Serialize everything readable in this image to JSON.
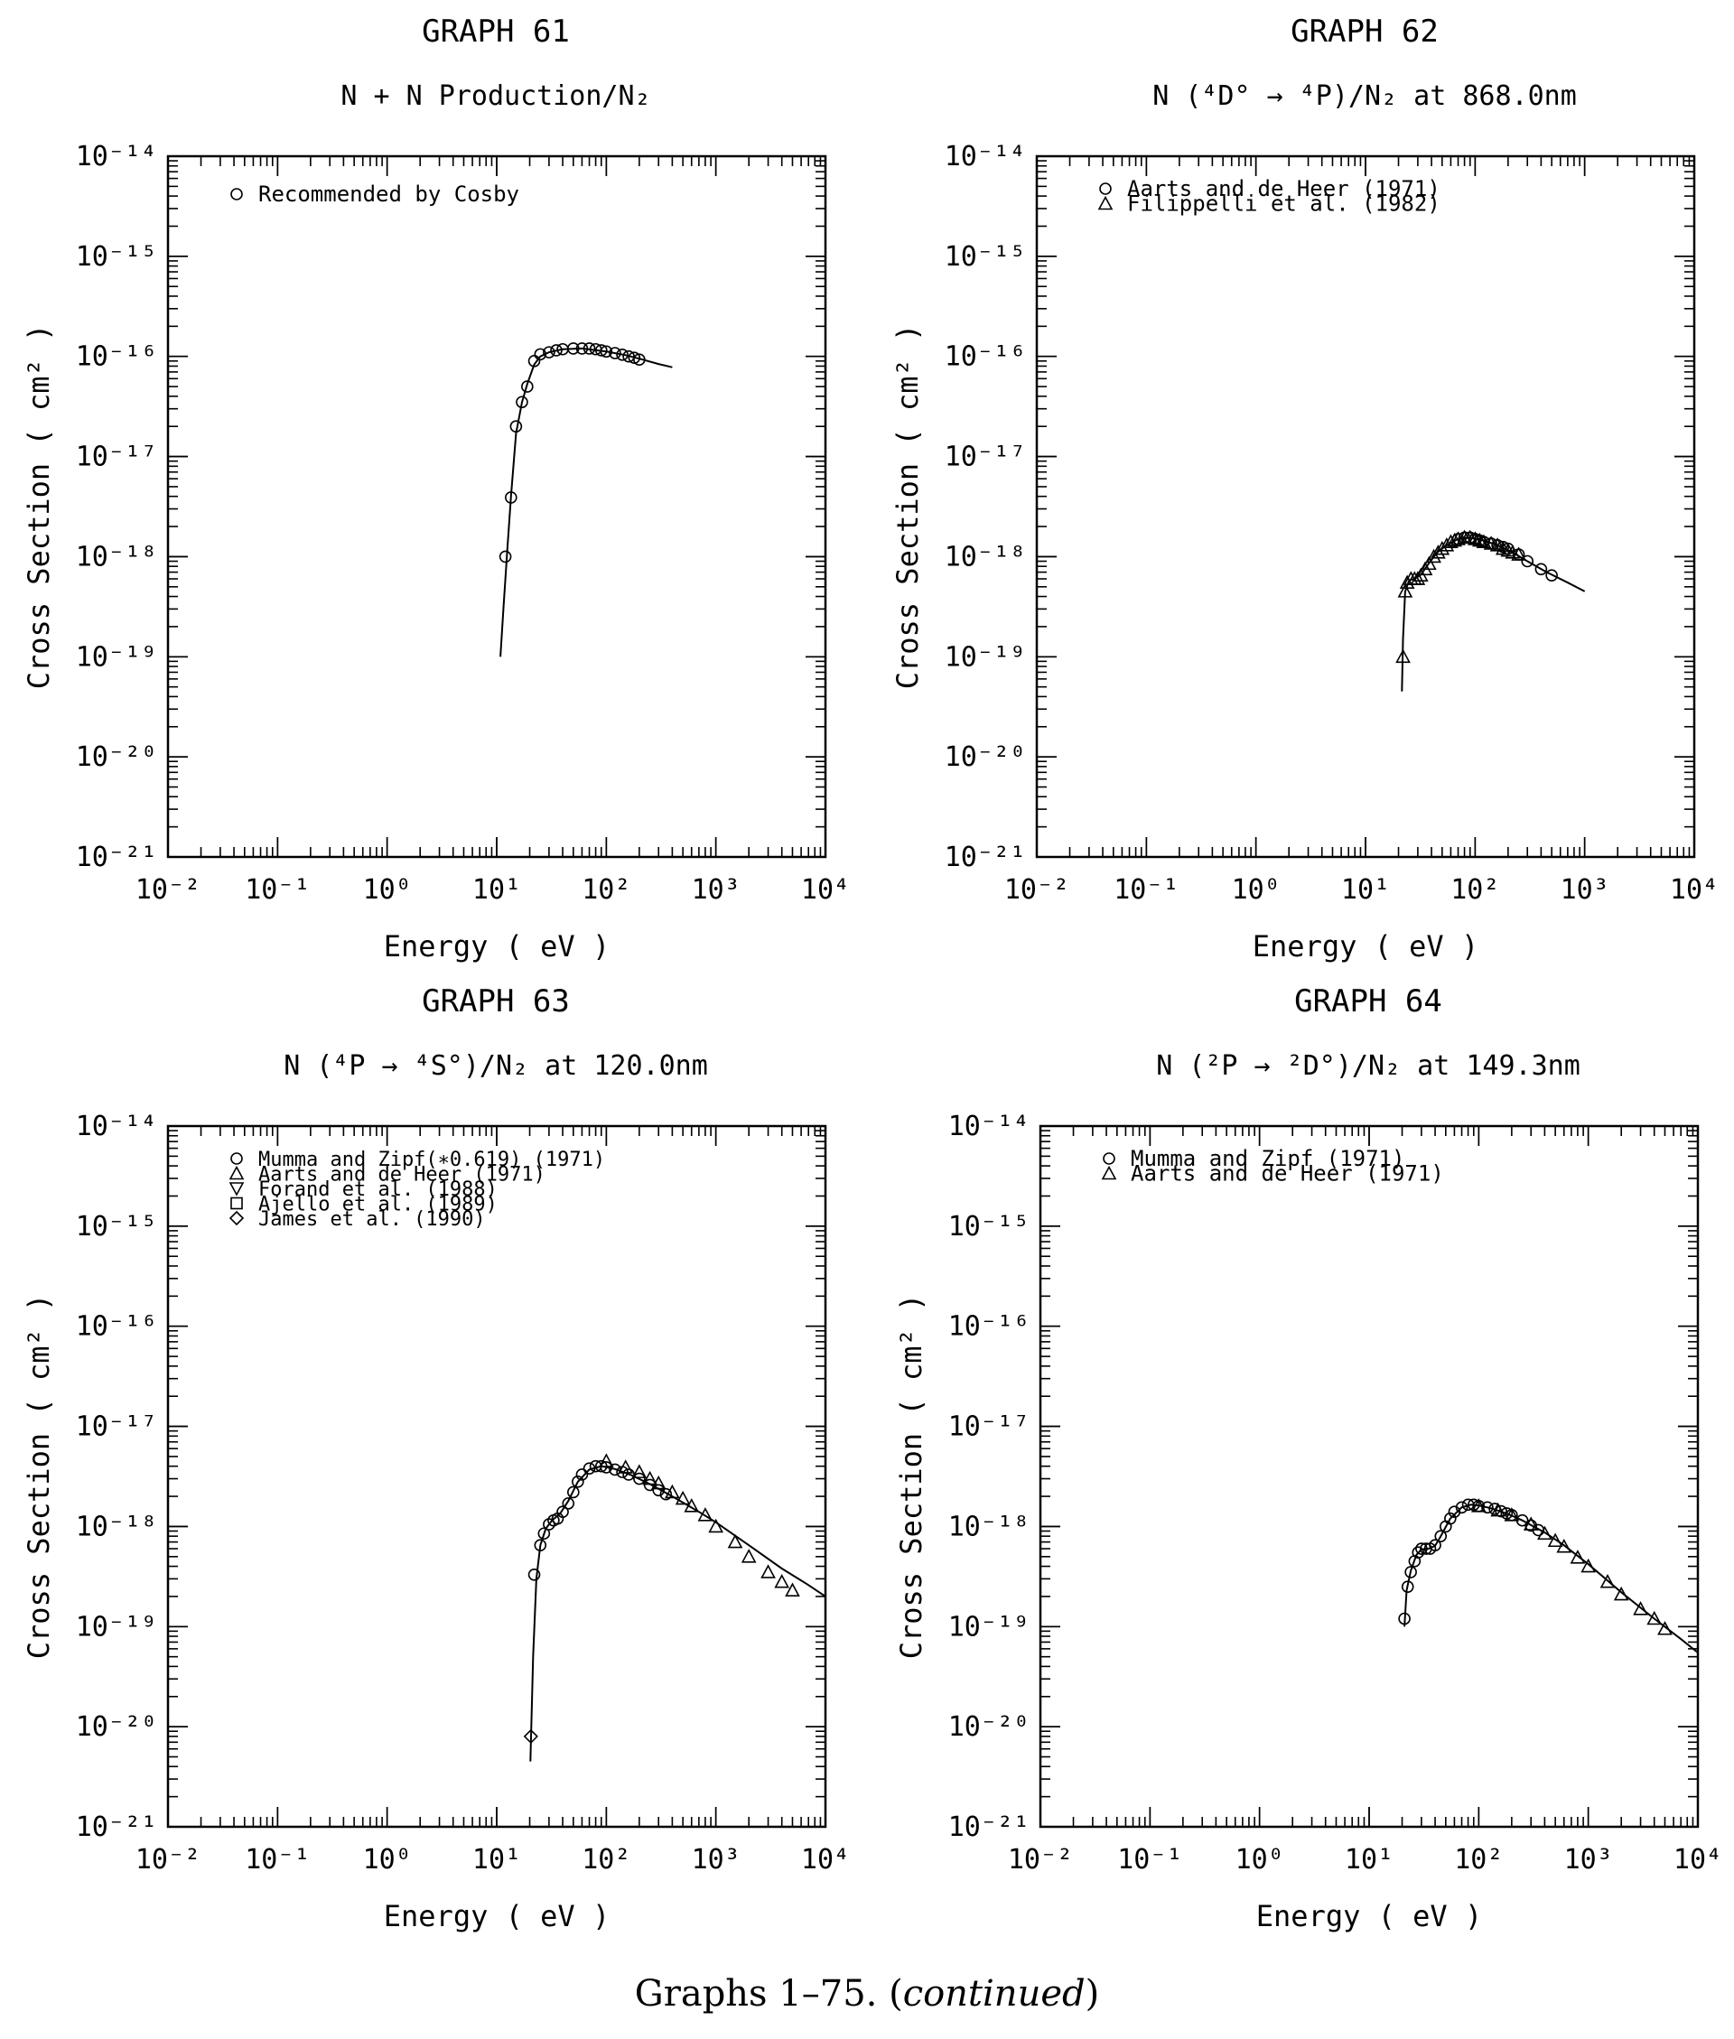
{
  "caption": {
    "text": "Graphs 1–75.",
    "emphasis": "continued"
  },
  "chart_data": [
    {
      "type": "scatter",
      "graph_label": "GRAPH 61",
      "title": "N + N Production/N₂",
      "xlabel": "Energy ( eV )",
      "ylabel": "Cross Section ( cm² )",
      "x_scale": "log",
      "y_scale": "log",
      "xlim": [
        0.01,
        10000
      ],
      "ylim": [
        1e-21,
        1e-14
      ],
      "x_ticks": [
        "10⁻²",
        "10⁻¹",
        "10⁰",
        "10¹",
        "10²",
        "10³",
        "10⁴"
      ],
      "y_ticks": [
        "10⁻²¹",
        "10⁻²⁰",
        "10⁻¹⁹",
        "10⁻¹⁸",
        "10⁻¹⁷",
        "10⁻¹⁶",
        "10⁻¹⁵",
        "10⁻¹⁴"
      ],
      "legend_position": "top-left",
      "series": [
        {
          "name": "Recommended by Cosby",
          "marker": "circle",
          "x": [
            12,
            13.5,
            15,
            17,
            19,
            22,
            25,
            30,
            35,
            40,
            50,
            60,
            70,
            80,
            90,
            100,
            120,
            140,
            160,
            180,
            200
          ],
          "y": [
            1e-18,
            3.9e-18,
            2e-17,
            3.5e-17,
            5e-17,
            9e-17,
            1.05e-16,
            1.1e-16,
            1.15e-16,
            1.18e-16,
            1.2e-16,
            1.2e-16,
            1.2e-16,
            1.18e-16,
            1.15e-16,
            1.12e-16,
            1.08e-16,
            1.04e-16,
            1e-16,
            9.7e-17,
            9.3e-17
          ]
        }
      ],
      "fit_curve": {
        "x": [
          10.8,
          11.5,
          12.5,
          13.5,
          15,
          17,
          19,
          22,
          25,
          30,
          40,
          60,
          100,
          150,
          200,
          300,
          400
        ],
        "y": [
          1e-19,
          3e-19,
          1.2e-18,
          4e-18,
          1.7e-17,
          3.5e-17,
          5.3e-17,
          8.3e-17,
          1e-16,
          1.1e-16,
          1.18e-16,
          1.2e-16,
          1.12e-16,
          1.03e-16,
          9.5e-17,
          8.4e-17,
          7.8e-17
        ]
      }
    },
    {
      "type": "scatter",
      "graph_label": "GRAPH 62",
      "title": "N (⁴D° → ⁴P)/N₂ at 868.0nm",
      "xlabel": "Energy ( eV )",
      "ylabel": "Cross Section ( cm² )",
      "x_scale": "log",
      "y_scale": "log",
      "xlim": [
        0.01,
        10000
      ],
      "ylim": [
        1e-21,
        1e-14
      ],
      "x_ticks": [
        "10⁻²",
        "10⁻¹",
        "10⁰",
        "10¹",
        "10²",
        "10³",
        "10⁴"
      ],
      "y_ticks": [
        "10⁻²¹",
        "10⁻²⁰",
        "10⁻¹⁹",
        "10⁻¹⁸",
        "10⁻¹⁷",
        "10⁻¹⁶",
        "10⁻¹⁵",
        "10⁻¹⁴"
      ],
      "legend_position": "top-left",
      "series": [
        {
          "name": "Aarts and de Heer (1971)",
          "marker": "circle",
          "x": [
            70,
            80,
            90,
            100,
            110,
            120,
            140,
            160,
            180,
            200,
            250,
            300,
            400,
            500
          ],
          "y": [
            1.5e-18,
            1.55e-18,
            1.55e-18,
            1.5e-18,
            1.45e-18,
            1.4e-18,
            1.35e-18,
            1.3e-18,
            1.25e-18,
            1.2e-18,
            1.05e-18,
            9e-19,
            7.5e-19,
            6.5e-19
          ]
        },
        {
          "name": "Filippelli et al. (1982)",
          "marker": "triangle-up",
          "x": [
            22,
            23,
            24,
            26,
            28,
            30,
            32,
            35,
            38,
            42,
            46,
            50,
            55,
            60,
            65,
            70,
            80,
            90,
            100,
            110,
            120,
            140,
            160,
            180,
            200,
            220,
            250
          ],
          "y": [
            1e-19,
            4.5e-19,
            5.5e-19,
            6e-19,
            6e-19,
            6e-19,
            6.5e-19,
            7.5e-19,
            8.5e-19,
            1e-18,
            1.1e-18,
            1.2e-18,
            1.3e-18,
            1.4e-18,
            1.45e-18,
            1.5e-18,
            1.55e-18,
            1.55e-18,
            1.5e-18,
            1.45e-18,
            1.4e-18,
            1.35e-18,
            1.3e-18,
            1.2e-18,
            1.15e-18,
            1.1e-18,
            1.05e-18
          ]
        }
      ],
      "fit_curve": {
        "x": [
          21.5,
          22,
          23,
          25,
          28,
          32,
          38,
          45,
          55,
          70,
          90,
          120,
          160,
          220,
          300,
          450,
          700,
          1000
        ],
        "y": [
          4.5e-20,
          1.5e-19,
          4.5e-19,
          5.8e-19,
          6e-19,
          6.6e-19,
          8.6e-19,
          1.1e-18,
          1.3e-18,
          1.5e-18,
          1.55e-18,
          1.45e-18,
          1.3e-18,
          1.1e-18,
          9e-19,
          7e-19,
          5.5e-19,
          4.5e-19
        ]
      }
    },
    {
      "type": "scatter",
      "graph_label": "GRAPH 63",
      "title": "N (⁴P → ⁴S°)/N₂ at 120.0nm",
      "xlabel": "Energy ( eV )",
      "ylabel": "Cross Section ( cm² )",
      "x_scale": "log",
      "y_scale": "log",
      "xlim": [
        0.01,
        10000
      ],
      "ylim": [
        1e-21,
        1e-14
      ],
      "x_ticks": [
        "10⁻²",
        "10⁻¹",
        "10⁰",
        "10¹",
        "10²",
        "10³",
        "10⁴"
      ],
      "y_ticks": [
        "10⁻²¹",
        "10⁻²⁰",
        "10⁻¹⁹",
        "10⁻¹⁸",
        "10⁻¹⁷",
        "10⁻¹⁶",
        "10⁻¹⁵",
        "10⁻¹⁴"
      ],
      "legend_position": "top-left",
      "series": [
        {
          "name": "Mumma and Zipf(∗0.619) (1971)",
          "marker": "circle",
          "x": [
            22,
            25,
            27,
            30,
            33,
            36,
            40,
            45,
            50,
            55,
            60,
            70,
            80,
            90,
            100,
            120,
            140,
            160,
            200,
            250,
            300,
            350
          ],
          "y": [
            3.3e-19,
            6.5e-19,
            8.5e-19,
            1.05e-18,
            1.15e-18,
            1.2e-18,
            1.4e-18,
            1.7e-18,
            2.2e-18,
            2.8e-18,
            3.3e-18,
            3.8e-18,
            4e-18,
            4e-18,
            3.9e-18,
            3.7e-18,
            3.5e-18,
            3.3e-18,
            3e-18,
            2.6e-18,
            2.3e-18,
            2.1e-18
          ]
        },
        {
          "name": "Aarts and de Heer (1971)",
          "marker": "triangle-up",
          "x": [
            100,
            150,
            200,
            250,
            300,
            400,
            500,
            600,
            800,
            1000,
            1500,
            2000,
            3000,
            4000,
            5000
          ],
          "y": [
            4.5e-18,
            3.9e-18,
            3.5e-18,
            3e-18,
            2.7e-18,
            2.2e-18,
            1.9e-18,
            1.6e-18,
            1.3e-18,
            1e-18,
            7e-19,
            5e-19,
            3.5e-19,
            2.8e-19,
            2.3e-19
          ]
        },
        {
          "name": "Forand et al. (1988)",
          "marker": "triangle-down",
          "x": [],
          "y": []
        },
        {
          "name": "Ajello et al. (1989)",
          "marker": "square",
          "x": [],
          "y": []
        },
        {
          "name": "James et al. (1990)",
          "marker": "diamond",
          "x": [
            20.5
          ],
          "y": [
            8e-21
          ]
        }
      ],
      "fit_curve": {
        "x": [
          20.3,
          20.7,
          21.5,
          23,
          25,
          28,
          32,
          38,
          45,
          55,
          70,
          90,
          120,
          170,
          250,
          400,
          700,
          1000,
          2000,
          4000,
          7000,
          10000
        ],
        "y": [
          4.5e-21,
          1e-20,
          5e-20,
          3e-19,
          6.5e-19,
          9.5e-19,
          1.15e-18,
          1.35e-18,
          1.8e-18,
          2.8e-18,
          3.7e-18,
          4e-18,
          3.75e-18,
          3.25e-18,
          2.65e-18,
          2e-18,
          1.4e-18,
          1.1e-18,
          6.5e-19,
          3.8e-19,
          2.6e-19,
          2e-19
        ]
      }
    },
    {
      "type": "scatter",
      "graph_label": "GRAPH 64",
      "title": "N (²P → ²D°)/N₂ at 149.3nm",
      "xlabel": "Energy ( eV )",
      "ylabel": "Cross Section ( cm² )",
      "x_scale": "log",
      "y_scale": "log",
      "xlim": [
        0.01,
        10000
      ],
      "ylim": [
        1e-21,
        1e-14
      ],
      "x_ticks": [
        "10⁻²",
        "10⁻¹",
        "10⁰",
        "10¹",
        "10²",
        "10³",
        "10⁴"
      ],
      "y_ticks": [
        "10⁻²¹",
        "10⁻²⁰",
        "10⁻¹⁹",
        "10⁻¹⁸",
        "10⁻¹⁷",
        "10⁻¹⁶",
        "10⁻¹⁵",
        "10⁻¹⁴"
      ],
      "legend_position": "top-left",
      "series": [
        {
          "name": "Mumma and Zipf (1971)",
          "marker": "circle",
          "x": [
            21,
            22.5,
            24,
            26,
            28,
            30,
            33,
            36,
            40,
            45,
            50,
            55,
            60,
            70,
            80,
            90,
            100,
            120,
            140,
            160,
            180,
            200,
            250,
            300,
            350
          ],
          "y": [
            1.2e-19,
            2.5e-19,
            3.5e-19,
            4.5e-19,
            5.5e-19,
            6e-19,
            6e-19,
            6e-19,
            6.5e-19,
            8e-19,
            1e-18,
            1.2e-18,
            1.4e-18,
            1.55e-18,
            1.65e-18,
            1.65e-18,
            1.6e-18,
            1.55e-18,
            1.5e-18,
            1.42e-18,
            1.35e-18,
            1.3e-18,
            1.15e-18,
            1.02e-18,
            9.2e-19
          ]
        },
        {
          "name": "Aarts and de Heer (1971)",
          "marker": "triangle-up",
          "x": [
            100,
            150,
            200,
            300,
            400,
            500,
            600,
            800,
            1000,
            1500,
            2000,
            3000,
            4000,
            5000
          ],
          "y": [
            1.6e-18,
            1.45e-18,
            1.3e-18,
            1.05e-18,
            8.5e-19,
            7.2e-19,
            6.3e-19,
            4.9e-19,
            4e-19,
            2.8e-19,
            2.1e-19,
            1.5e-19,
            1.2e-19,
            9.5e-20
          ]
        }
      ],
      "fit_curve": {
        "x": [
          21,
          22,
          24,
          27,
          30,
          35,
          40,
          45,
          55,
          70,
          85,
          100,
          130,
          180,
          250,
          400,
          600,
          1000,
          2000,
          4000,
          7000,
          10000
        ],
        "y": [
          1e-19,
          2.3e-19,
          3.6e-19,
          5.2e-19,
          5.9e-19,
          6e-19,
          6.4e-19,
          8e-19,
          1.2e-18,
          1.55e-18,
          1.65e-18,
          1.62e-18,
          1.52e-18,
          1.35e-18,
          1.15e-18,
          8.7e-19,
          6.5e-19,
          4.2e-19,
          2.2e-19,
          1.2e-19,
          7.5e-20,
          5.5e-20
        ]
      }
    }
  ]
}
